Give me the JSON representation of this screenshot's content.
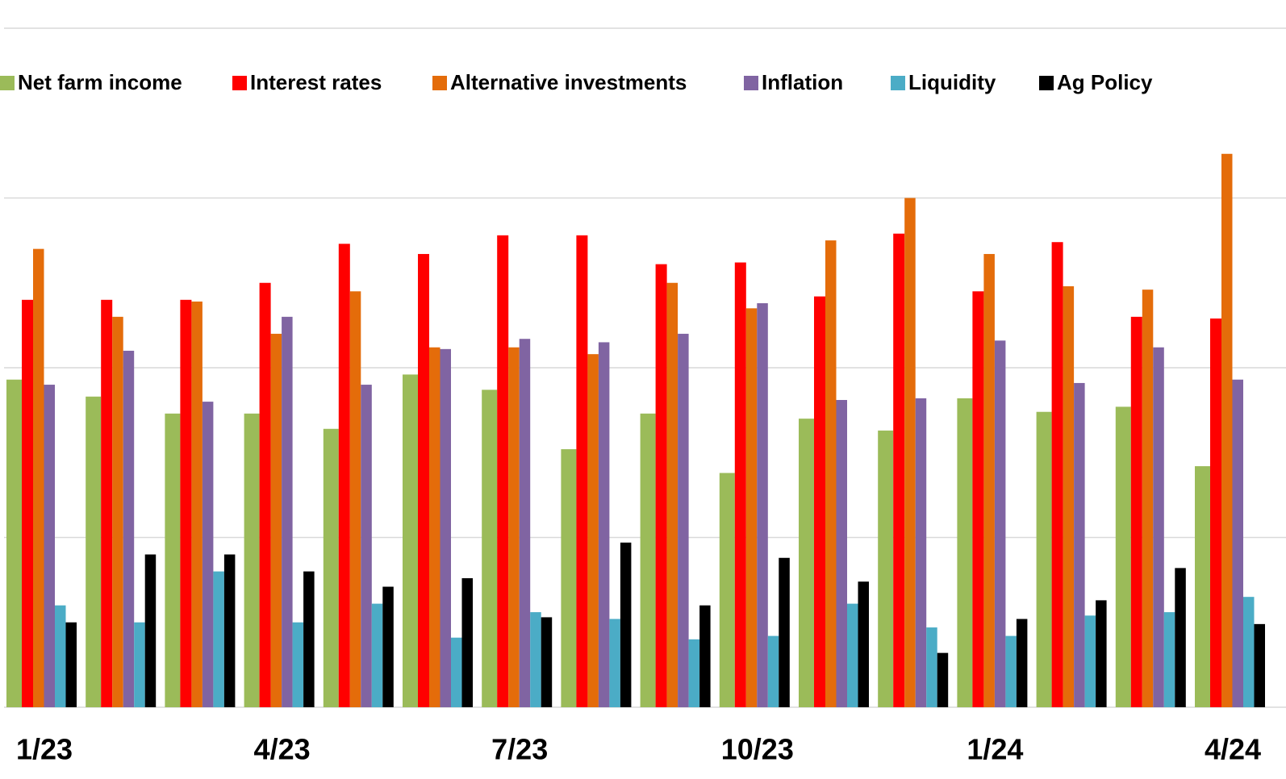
{
  "chart_data": {
    "type": "bar",
    "categories": [
      "1/23",
      null,
      null,
      "4/23",
      null,
      null,
      "7/23",
      null,
      null,
      "10/23",
      null,
      null,
      "1/24",
      null,
      null,
      "4/24"
    ],
    "series": [
      {
        "name": "Net farm income",
        "color": "#9bbb59",
        "values": [
          19.3,
          18.3,
          17.3,
          17.3,
          16.4,
          19.6,
          18.7,
          15.2,
          17.3,
          13.8,
          17.0,
          16.3,
          18.2,
          17.4,
          17.7,
          14.2
        ]
      },
      {
        "name": "Interest rates",
        "color": "#ff0000",
        "values": [
          24.0,
          24.0,
          24.0,
          25.0,
          27.3,
          26.7,
          27.8,
          27.8,
          26.1,
          26.2,
          24.2,
          27.9,
          24.5,
          27.4,
          23.0,
          22.9
        ]
      },
      {
        "name": "Alternative investments",
        "color": "#e46c0a",
        "values": [
          27.0,
          23.0,
          23.9,
          22.0,
          24.5,
          21.2,
          21.2,
          20.8,
          25.0,
          23.5,
          27.5,
          30.0,
          26.7,
          24.8,
          24.6,
          32.6
        ]
      },
      {
        "name": "Inflation",
        "color": "#8064a2",
        "values": [
          19.0,
          21.0,
          18.0,
          23.0,
          19.0,
          21.1,
          21.7,
          21.5,
          22.0,
          23.8,
          18.1,
          18.2,
          21.6,
          19.1,
          21.2,
          19.3
        ]
      },
      {
        "name": "Liquidity",
        "color": "#4bacc6",
        "values": [
          6.0,
          5.0,
          8.0,
          5.0,
          6.1,
          4.1,
          5.6,
          5.2,
          4.0,
          4.2,
          6.1,
          4.7,
          4.2,
          5.4,
          5.6,
          6.5
        ]
      },
      {
        "name": "Ag Policy",
        "color": "#000000",
        "values": [
          5.0,
          9.0,
          9.0,
          8.0,
          7.1,
          7.6,
          5.3,
          9.7,
          6.0,
          8.8,
          7.4,
          3.2,
          5.2,
          6.3,
          8.2,
          4.9
        ]
      }
    ],
    "ylim": [
      0,
      40
    ],
    "yticks": [
      0,
      10,
      20,
      30,
      40
    ],
    "grid": true
  }
}
